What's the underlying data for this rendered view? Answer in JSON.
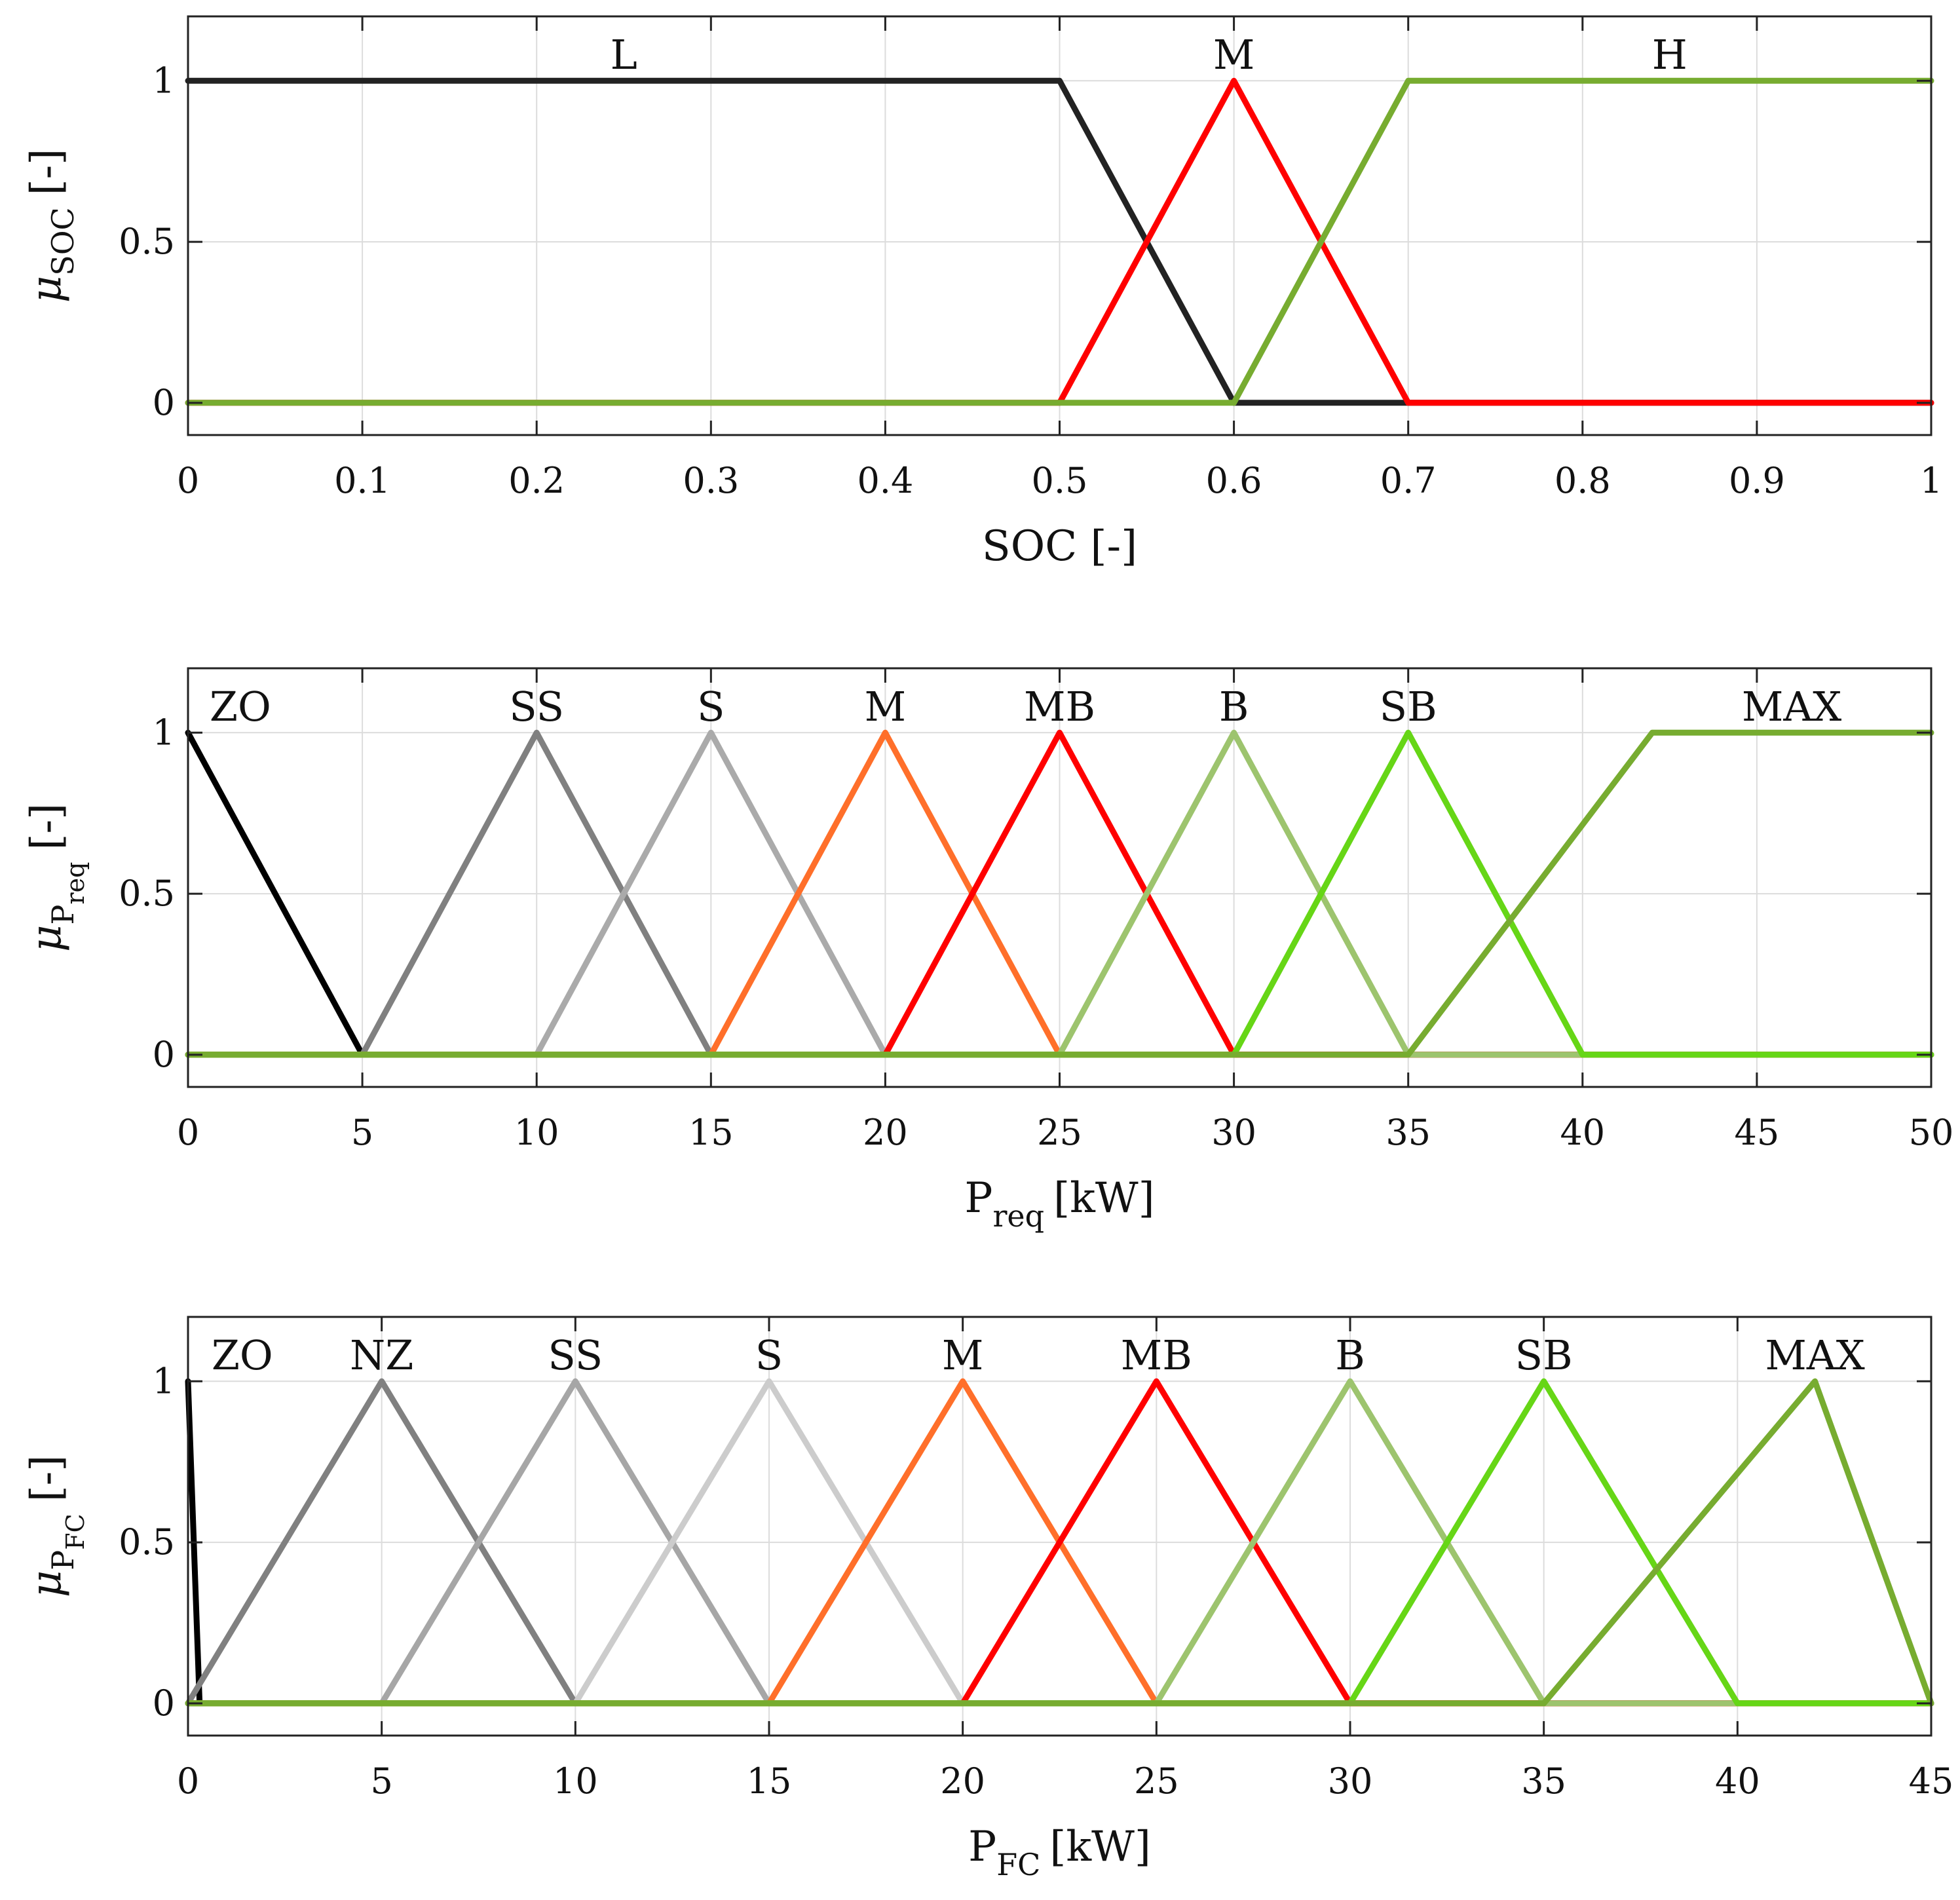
{
  "chart_data": [
    {
      "type": "line",
      "xlabel": "SOC [-]",
      "ylabel": {
        "symbol": "μ",
        "sub": "SOC",
        "unit": "[-]"
      },
      "xlim": [
        0,
        1
      ],
      "ylim": [
        -0.1,
        1.2
      ],
      "xticks": [
        0,
        0.1,
        0.2,
        0.3,
        0.4,
        0.5,
        0.6,
        0.7,
        0.8,
        0.9,
        1
      ],
      "xtick_labels": [
        "0",
        "0.1",
        "0.2",
        "0.3",
        "0.4",
        "0.5",
        "0.6",
        "0.7",
        "0.8",
        "0.9",
        "1"
      ],
      "yticks": [
        0,
        0.5,
        1
      ],
      "ytick_labels": [
        "0",
        "0.5",
        "1"
      ],
      "grid": true,
      "series": [
        {
          "name": "L",
          "color": "#222222",
          "x": [
            0,
            0.5,
            0.6,
            1
          ],
          "y": [
            1,
            1,
            0,
            0
          ],
          "label_x": 0.25
        },
        {
          "name": "M",
          "color": "#ff0000",
          "x": [
            0,
            0.5,
            0.6,
            0.7,
            1
          ],
          "y": [
            0,
            0,
            1,
            0,
            0
          ],
          "label_x": 0.6
        },
        {
          "name": "H",
          "color": "#77ac30",
          "x": [
            0,
            0.6,
            0.7,
            1
          ],
          "y": [
            0,
            0,
            1,
            1
          ],
          "label_x": 0.85
        }
      ]
    },
    {
      "type": "line",
      "xlabel": {
        "main": "P",
        "sub": "req",
        "unit": "[kW]"
      },
      "ylabel": {
        "symbol": "μ",
        "sub": "P",
        "subsub": "req",
        "unit": "[-]"
      },
      "xlim": [
        0,
        50
      ],
      "ylim": [
        -0.1,
        1.2
      ],
      "xticks": [
        0,
        5,
        10,
        15,
        20,
        25,
        30,
        35,
        40,
        45,
        50
      ],
      "xtick_labels": [
        "0",
        "5",
        "10",
        "15",
        "20",
        "25",
        "30",
        "35",
        "40",
        "45",
        "50"
      ],
      "yticks": [
        0,
        0.5,
        1
      ],
      "ytick_labels": [
        "0",
        "0.5",
        "1"
      ],
      "grid": true,
      "series": [
        {
          "name": "ZO",
          "color": "#000000",
          "x": [
            0,
            5,
            50
          ],
          "y": [
            1,
            0,
            0
          ],
          "label_x": 1.5
        },
        {
          "name": "SS",
          "color": "#808080",
          "x": [
            0,
            5,
            10,
            15,
            50
          ],
          "y": [
            0,
            0,
            1,
            0,
            0
          ],
          "label_x": 10
        },
        {
          "name": "S",
          "color": "#aaaaaa",
          "x": [
            0,
            10,
            15,
            20,
            50
          ],
          "y": [
            0,
            0,
            1,
            0,
            0
          ],
          "label_x": 15
        },
        {
          "name": "M",
          "color": "#ff6f2a",
          "x": [
            0,
            15,
            20,
            25,
            50
          ],
          "y": [
            0,
            0,
            1,
            0,
            0
          ],
          "label_x": 20
        },
        {
          "name": "MB",
          "color": "#ff0000",
          "x": [
            0,
            20,
            25,
            30,
            50
          ],
          "y": [
            0,
            0,
            1,
            0,
            0
          ],
          "label_x": 25
        },
        {
          "name": "B",
          "color": "#9dc46e",
          "x": [
            0,
            25,
            30,
            35,
            50
          ],
          "y": [
            0,
            0,
            1,
            0,
            0
          ],
          "label_x": 30
        },
        {
          "name": "SB",
          "color": "#66d616",
          "x": [
            0,
            30,
            35,
            40,
            50
          ],
          "y": [
            0,
            0,
            1,
            0,
            0
          ],
          "label_x": 35
        },
        {
          "name": "MAX",
          "color": "#77ac30",
          "x": [
            0,
            35,
            42,
            50
          ],
          "y": [
            0,
            0,
            1,
            1
          ],
          "label_x": 46
        }
      ]
    },
    {
      "type": "line",
      "xlabel": {
        "main": "P",
        "sub": "FC",
        "unit": "[kW]"
      },
      "ylabel": {
        "symbol": "μ",
        "sub": "P",
        "subsub": "FC",
        "unit": "[-]"
      },
      "xlim": [
        0,
        45
      ],
      "ylim": [
        -0.1,
        1.2
      ],
      "xticks": [
        0,
        5,
        10,
        15,
        20,
        25,
        30,
        35,
        40,
        45
      ],
      "xtick_labels": [
        "0",
        "5",
        "10",
        "15",
        "20",
        "25",
        "30",
        "35",
        "40",
        "45"
      ],
      "yticks": [
        0,
        0.5,
        1
      ],
      "ytick_labels": [
        "0",
        "0.5",
        "1"
      ],
      "grid": true,
      "series": [
        {
          "name": "ZO",
          "color": "#000000",
          "x": [
            0,
            0.3,
            45
          ],
          "y": [
            1,
            0,
            0
          ],
          "label_x": 1.4
        },
        {
          "name": "NZ",
          "color": "#808080",
          "x": [
            0,
            5,
            10,
            45
          ],
          "y": [
            0,
            1,
            0,
            0
          ],
          "label_x": 5
        },
        {
          "name": "SS",
          "color": "#a6a6a6",
          "x": [
            0,
            5,
            10,
            15,
            45
          ],
          "y": [
            0,
            0,
            1,
            0,
            0
          ],
          "label_x": 10
        },
        {
          "name": "S",
          "color": "#cccccc",
          "x": [
            0,
            10,
            15,
            20,
            45
          ],
          "y": [
            0,
            0,
            1,
            0,
            0
          ],
          "label_x": 15
        },
        {
          "name": "M",
          "color": "#ff6f2a",
          "x": [
            0,
            15,
            20,
            25,
            45
          ],
          "y": [
            0,
            0,
            1,
            0,
            0
          ],
          "label_x": 20
        },
        {
          "name": "MB",
          "color": "#ff0000",
          "x": [
            0,
            20,
            25,
            30,
            45
          ],
          "y": [
            0,
            0,
            1,
            0,
            0
          ],
          "label_x": 25
        },
        {
          "name": "B",
          "color": "#9dc46e",
          "x": [
            0,
            25,
            30,
            35,
            45
          ],
          "y": [
            0,
            0,
            1,
            0,
            0
          ],
          "label_x": 30
        },
        {
          "name": "SB",
          "color": "#66d616",
          "x": [
            0,
            30,
            35,
            40,
            45
          ],
          "y": [
            0,
            0,
            1,
            0,
            0
          ],
          "label_x": 35
        },
        {
          "name": "MAX",
          "color": "#77ac30",
          "x": [
            0,
            35,
            42,
            45
          ],
          "y": [
            0,
            0,
            1,
            0
          ],
          "label_x": 42
        }
      ]
    }
  ]
}
